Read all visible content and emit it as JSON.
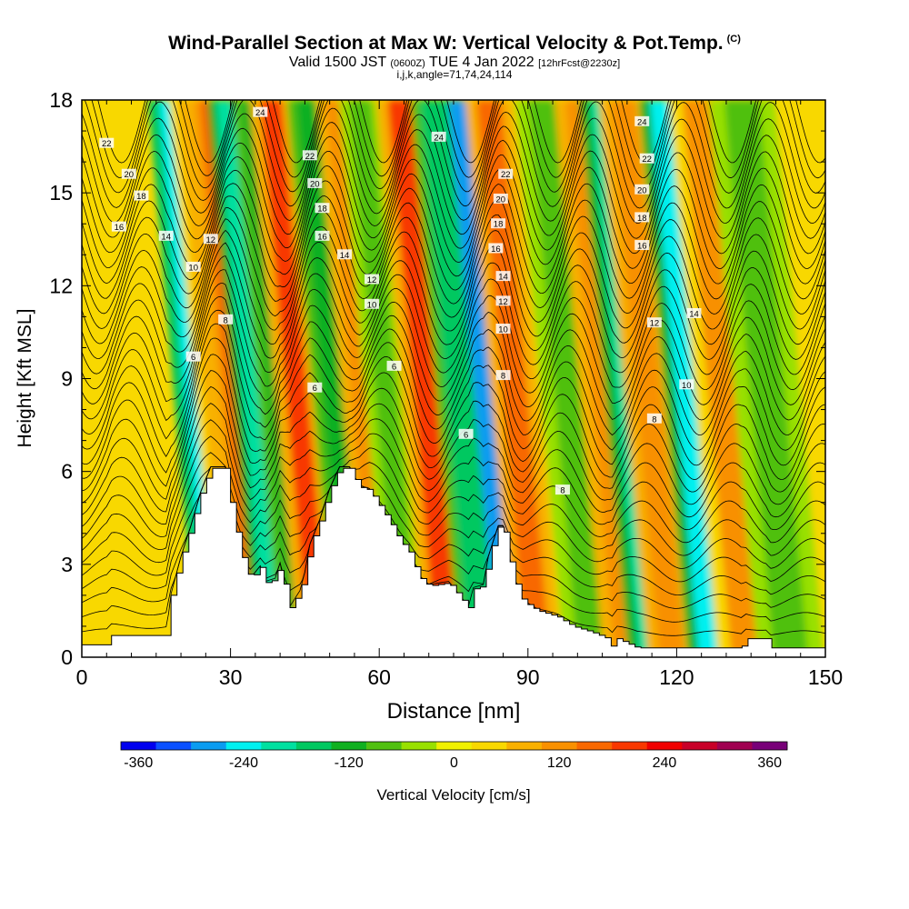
{
  "header": {
    "title": "Wind-Parallel Section at Max W: Vertical Velocity & Pot.Temp.",
    "copyright": "(C)",
    "valid_prefix": "Valid 1500 JST",
    "valid_utc": "(0600Z)",
    "valid_date": "TUE 4 Jan 2022",
    "forecast": "[12hrFcst@2230z]",
    "grid_info": "i,j,k,angle=71,74,24,114"
  },
  "chart_data": {
    "type": "heatmap",
    "xlabel": "Distance [nm]",
    "ylabel": "Height [Kft MSL]",
    "xlim": [
      0,
      150
    ],
    "ylim": [
      0,
      18
    ],
    "xticks": [
      0,
      30,
      60,
      90,
      120,
      150
    ],
    "yticks": [
      0,
      3,
      6,
      9,
      12,
      15,
      18
    ],
    "colorbar": {
      "label": "Vertical Velocity [cm/s]",
      "ticks": [
        -360,
        -240,
        -120,
        0,
        120,
        240,
        360
      ],
      "range": [
        -380,
        380
      ],
      "colors": [
        "#0000ee",
        "#0a50ff",
        "#0a9cf0",
        "#00f0f0",
        "#00e0a0",
        "#00c860",
        "#10b020",
        "#50c010",
        "#98e000",
        "#f0f000",
        "#f8d800",
        "#f8b000",
        "#f89000",
        "#f86800",
        "#f83800",
        "#f00000",
        "#c80028",
        "#a00050",
        "#780078"
      ]
    },
    "vertical_velocity_bands": [
      {
        "x": 28,
        "width": 2.5,
        "w": -260
      },
      {
        "x": 31,
        "width": 1.8,
        "w": 90
      },
      {
        "x": 36,
        "width": 1.8,
        "w": 190
      },
      {
        "x": 39,
        "width": 2.0,
        "w": -200
      },
      {
        "x": 44,
        "width": 2.0,
        "w": -120
      },
      {
        "x": 48,
        "width": 2.2,
        "w": 180
      },
      {
        "x": 55,
        "width": 2.0,
        "w": -120
      },
      {
        "x": 61,
        "width": 2.0,
        "w": 130
      },
      {
        "x": 66,
        "width": 2.2,
        "w": -100
      },
      {
        "x": 74,
        "width": 2.5,
        "w": 180
      },
      {
        "x": 80,
        "width": 2.0,
        "w": -160
      },
      {
        "x": 86,
        "width": 2.2,
        "w": -300
      },
      {
        "x": 92,
        "width": 2.5,
        "w": 150
      },
      {
        "x": 103,
        "width": 3.0,
        "w": -80
      },
      {
        "x": 110,
        "width": 2.5,
        "w": 110
      },
      {
        "x": 115,
        "width": 2.5,
        "w": -220
      },
      {
        "x": 119,
        "width": 2.5,
        "w": 120
      },
      {
        "x": 127,
        "width": 2.5,
        "w": -230
      },
      {
        "x": 134,
        "width": 3.0,
        "w": 100
      },
      {
        "x": 143,
        "width": 3.5,
        "w": -70
      }
    ],
    "terrain": [
      [
        0,
        0.4
      ],
      [
        5,
        0.4
      ],
      [
        6,
        0.7
      ],
      [
        17,
        0.7
      ],
      [
        18,
        2.0
      ],
      [
        20,
        3.2
      ],
      [
        22,
        4.2
      ],
      [
        24,
        5.3
      ],
      [
        26,
        6.1
      ],
      [
        29,
        6.1
      ],
      [
        30,
        5.0
      ],
      [
        32,
        3.4
      ],
      [
        34,
        2.5
      ],
      [
        36,
        2.9
      ],
      [
        37,
        2.4
      ],
      [
        39,
        2.5
      ],
      [
        40,
        3.0
      ],
      [
        41,
        2.2
      ],
      [
        42,
        1.6
      ],
      [
        44,
        2.1
      ],
      [
        45,
        2.7
      ],
      [
        46,
        3.6
      ],
      [
        48,
        4.4
      ],
      [
        50,
        5.4
      ],
      [
        52,
        6.1
      ],
      [
        54,
        6.1
      ],
      [
        56,
        5.5
      ],
      [
        58,
        5.4
      ],
      [
        60,
        4.9
      ],
      [
        62,
        4.4
      ],
      [
        64,
        3.8
      ],
      [
        66,
        3.4
      ],
      [
        68,
        2.6
      ],
      [
        70,
        2.3
      ],
      [
        74,
        2.4
      ],
      [
        76,
        2.0
      ],
      [
        78,
        1.6
      ],
      [
        79,
        2.2
      ],
      [
        81,
        2.3
      ],
      [
        82,
        3.2
      ],
      [
        84,
        4.2
      ],
      [
        85,
        4.2
      ],
      [
        86,
        3.4
      ],
      [
        87,
        2.6
      ],
      [
        89,
        1.8
      ],
      [
        92,
        1.5
      ],
      [
        96,
        1.3
      ],
      [
        99,
        1.0
      ],
      [
        103,
        0.8
      ],
      [
        106,
        0.6
      ],
      [
        107,
        0.3
      ],
      [
        108,
        0.6
      ],
      [
        112,
        0.3
      ],
      [
        133,
        0.3
      ],
      [
        134,
        0.6
      ],
      [
        138,
        0.6
      ],
      [
        139,
        0.3
      ],
      [
        150,
        0.3
      ]
    ],
    "potential_temperature_labels": [
      {
        "x": 5.0,
        "y": 16.6,
        "text": "22"
      },
      {
        "x": 9.5,
        "y": 15.6,
        "text": "20"
      },
      {
        "x": 12.0,
        "y": 14.9,
        "text": "18"
      },
      {
        "x": 7.5,
        "y": 13.9,
        "text": "16"
      },
      {
        "x": 17.0,
        "y": 13.6,
        "text": "14"
      },
      {
        "x": 26.0,
        "y": 13.5,
        "text": "12"
      },
      {
        "x": 22.5,
        "y": 12.6,
        "text": "10"
      },
      {
        "x": 29.0,
        "y": 10.9,
        "text": "8"
      },
      {
        "x": 22.5,
        "y": 9.7,
        "text": "6"
      },
      {
        "x": 36.0,
        "y": 17.6,
        "text": "24"
      },
      {
        "x": 46.0,
        "y": 16.2,
        "text": "22"
      },
      {
        "x": 47.0,
        "y": 15.3,
        "text": "20"
      },
      {
        "x": 48.5,
        "y": 14.5,
        "text": "18"
      },
      {
        "x": 48.5,
        "y": 13.6,
        "text": "16"
      },
      {
        "x": 53.0,
        "y": 13.0,
        "text": "14"
      },
      {
        "x": 58.5,
        "y": 12.2,
        "text": "12"
      },
      {
        "x": 58.5,
        "y": 11.4,
        "text": "10"
      },
      {
        "x": 47.0,
        "y": 8.7,
        "text": "6"
      },
      {
        "x": 63.0,
        "y": 9.4,
        "text": "6"
      },
      {
        "x": 72.0,
        "y": 16.8,
        "text": "24"
      },
      {
        "x": 85.5,
        "y": 15.6,
        "text": "22"
      },
      {
        "x": 84.5,
        "y": 14.8,
        "text": "20"
      },
      {
        "x": 84.0,
        "y": 14.0,
        "text": "18"
      },
      {
        "x": 83.5,
        "y": 13.2,
        "text": "16"
      },
      {
        "x": 85.0,
        "y": 12.3,
        "text": "14"
      },
      {
        "x": 85.0,
        "y": 11.5,
        "text": "12"
      },
      {
        "x": 85.0,
        "y": 10.6,
        "text": "10"
      },
      {
        "x": 85.0,
        "y": 9.1,
        "text": "8"
      },
      {
        "x": 77.5,
        "y": 7.2,
        "text": "6"
      },
      {
        "x": 97.0,
        "y": 5.4,
        "text": "8"
      },
      {
        "x": 113.0,
        "y": 17.3,
        "text": "24"
      },
      {
        "x": 114.0,
        "y": 16.1,
        "text": "22"
      },
      {
        "x": 113.0,
        "y": 15.1,
        "text": "20"
      },
      {
        "x": 113.0,
        "y": 14.2,
        "text": "18"
      },
      {
        "x": 113.0,
        "y": 13.3,
        "text": "16"
      },
      {
        "x": 115.5,
        "y": 10.8,
        "text": "12"
      },
      {
        "x": 123.5,
        "y": 11.1,
        "text": "14"
      },
      {
        "x": 122.0,
        "y": 8.8,
        "text": "10"
      },
      {
        "x": 115.5,
        "y": 7.7,
        "text": "8"
      }
    ]
  }
}
